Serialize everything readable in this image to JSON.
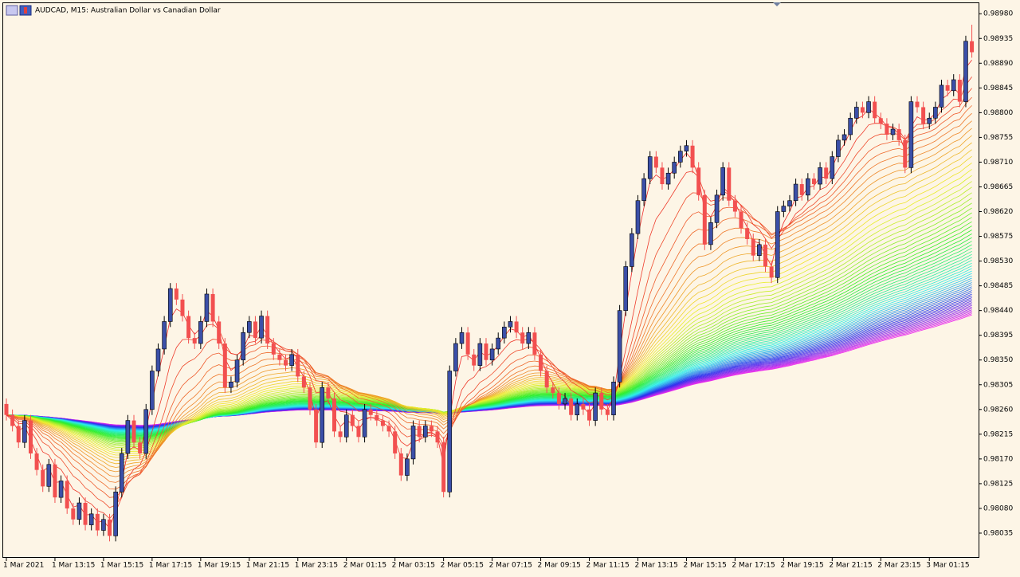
{
  "chart_data": {
    "type": "candlestick",
    "title": "AUDCAD, M15:  Australian Dollar vs Canadian Dollar",
    "up_color": "#3b4fa8",
    "down_color": "#f25050",
    "background": "#fdf5e6",
    "ylim": [
      0.9799,
      0.99005
    ],
    "yticks": [
      {
        "value": 0.9898,
        "label": "0.98980"
      },
      {
        "value": 0.98935,
        "label": "0.98935"
      },
      {
        "value": 0.9889,
        "label": "0.98890"
      },
      {
        "value": 0.98845,
        "label": "0.98845"
      },
      {
        "value": 0.988,
        "label": "0.98800"
      },
      {
        "value": 0.98755,
        "label": "0.98755"
      },
      {
        "value": 0.9871,
        "label": "0.98710"
      },
      {
        "value": 0.98665,
        "label": "0.98665"
      },
      {
        "value": 0.9862,
        "label": "0.98620"
      },
      {
        "value": 0.98575,
        "label": "0.98575"
      },
      {
        "value": 0.9853,
        "label": "0.98530"
      },
      {
        "value": 0.98485,
        "label": "0.98485"
      },
      {
        "value": 0.9844,
        "label": "0.98440"
      },
      {
        "value": 0.98395,
        "label": "0.98395"
      },
      {
        "value": 0.9835,
        "label": "0.98350"
      },
      {
        "value": 0.98305,
        "label": "0.98305"
      },
      {
        "value": 0.9826,
        "label": "0.98260"
      },
      {
        "value": 0.98215,
        "label": "0.98215"
      },
      {
        "value": 0.9817,
        "label": "0.98170"
      },
      {
        "value": 0.98125,
        "label": "0.98125"
      },
      {
        "value": 0.9808,
        "label": "0.98080"
      },
      {
        "value": 0.98035,
        "label": "0.98035"
      }
    ],
    "categories": [
      "1 Mar 2021",
      null,
      null,
      null,
      null,
      null,
      null,
      null,
      "1 Mar 13:15",
      null,
      null,
      null,
      null,
      null,
      null,
      null,
      "1 Mar 15:15",
      null,
      null,
      null,
      null,
      null,
      null,
      null,
      "1 Mar 17:15",
      null,
      null,
      null,
      null,
      null,
      null,
      null,
      "1 Mar 19:15",
      null,
      null,
      null,
      null,
      null,
      null,
      null,
      "1 Mar 21:15",
      null,
      null,
      null,
      null,
      null,
      null,
      null,
      "1 Mar 23:15",
      null,
      null,
      null,
      null,
      null,
      null,
      null,
      "2 Mar 01:15",
      null,
      null,
      null,
      null,
      null,
      null,
      null,
      "2 Mar 03:15",
      null,
      null,
      null,
      null,
      null,
      null,
      null,
      "2 Mar 05:15",
      null,
      null,
      null,
      null,
      null,
      null,
      null,
      "2 Mar 07:15",
      null,
      null,
      null,
      null,
      null,
      null,
      null,
      "2 Mar 09:15",
      null,
      null,
      null,
      null,
      null,
      null,
      null,
      "2 Mar 11:15",
      null,
      null,
      null,
      null,
      null,
      null,
      null,
      "2 Mar 13:15",
      null,
      null,
      null,
      null,
      null,
      null,
      null,
      "2 Mar 15:15",
      null,
      null,
      null,
      null,
      null,
      null,
      null,
      "2 Mar 17:15",
      null,
      null,
      null,
      null,
      null,
      null,
      null,
      "2 Mar 19:15",
      null,
      null,
      null,
      null,
      null,
      null,
      null,
      "2 Mar 21:15",
      null,
      null,
      null,
      null,
      null,
      null,
      null,
      "2 Mar 23:15",
      null,
      null,
      null,
      null,
      null,
      null,
      null,
      "3 Mar 01:15",
      null,
      null,
      null,
      null,
      null,
      null,
      null
    ],
    "open": [
      0.9827,
      0.9825,
      0.9823,
      0.982,
      0.9824,
      0.9818,
      0.9815,
      0.9812,
      0.9816,
      0.981,
      0.9813,
      0.9808,
      0.9806,
      0.9809,
      0.9805,
      0.9807,
      0.9804,
      0.9806,
      0.9803,
      0.9811,
      0.9818,
      0.9824,
      0.982,
      0.9818,
      0.9826,
      0.9833,
      0.9837,
      0.9842,
      0.9848,
      0.9846,
      0.9843,
      0.9839,
      0.9838,
      0.9842,
      0.9847,
      0.9842,
      0.9838,
      0.983,
      0.9831,
      0.9835,
      0.984,
      0.9842,
      0.9839,
      0.9843,
      0.9838,
      0.9836,
      0.9835,
      0.9834,
      0.9836,
      0.9832,
      0.983,
      0.9826,
      0.982,
      0.983,
      0.9828,
      0.9822,
      0.9821,
      0.9825,
      0.9823,
      0.9821,
      0.9826,
      0.9825,
      0.9824,
      0.9823,
      0.9822,
      0.9818,
      0.9814,
      0.9817,
      0.9823,
      0.9821,
      0.9823,
      0.9822,
      0.982,
      0.9811,
      0.9833,
      0.9838,
      0.984,
      0.9836,
      0.9834,
      0.9838,
      0.9835,
      0.9837,
      0.9839,
      0.9841,
      0.9842,
      0.984,
      0.9838,
      0.984,
      0.9836,
      0.9833,
      0.983,
      0.9829,
      0.9827,
      0.9828,
      0.9825,
      0.9827,
      0.9826,
      0.9824,
      0.9829,
      0.9826,
      0.9825,
      0.9831,
      0.9844,
      0.9852,
      0.9858,
      0.9864,
      0.9868,
      0.9872,
      0.987,
      0.9867,
      0.9869,
      0.9871,
      0.9873,
      0.9874,
      0.987,
      0.9865,
      0.9856,
      0.986,
      0.9865,
      0.987,
      0.9864,
      0.9862,
      0.9859,
      0.9857,
      0.9854,
      0.9856,
      0.9852,
      0.985,
      0.9862,
      0.9863,
      0.9864,
      0.9867,
      0.9865,
      0.9868,
      0.9867,
      0.987,
      0.9868,
      0.9872,
      0.9875,
      0.9876,
      0.9879,
      0.9881,
      0.988,
      0.9882,
      0.9879,
      0.9878,
      0.9876,
      0.9877,
      0.9875,
      0.987,
      0.9882,
      0.9881,
      0.9878,
      0.9879,
      0.9881,
      0.9885,
      0.9884,
      0.9886,
      0.9882,
      0.9893
    ],
    "high": [
      0.9828,
      0.9826,
      0.9824,
      0.9825,
      0.9825,
      0.9819,
      0.9816,
      0.9817,
      0.9817,
      0.9814,
      0.9814,
      0.9809,
      0.981,
      0.981,
      0.9808,
      0.9808,
      0.9807,
      0.9807,
      0.9812,
      0.9819,
      0.9825,
      0.9825,
      0.9821,
      0.9827,
      0.9834,
      0.9838,
      0.9843,
      0.9849,
      0.9849,
      0.9847,
      0.9844,
      0.984,
      0.9843,
      0.9848,
      0.9848,
      0.9843,
      0.9839,
      0.9832,
      0.9836,
      0.9841,
      0.9843,
      0.9843,
      0.9844,
      0.9844,
      0.9839,
      0.9837,
      0.9836,
      0.9837,
      0.9837,
      0.9833,
      0.9831,
      0.9827,
      0.9831,
      0.9831,
      0.9829,
      0.9823,
      0.9826,
      0.9826,
      0.9824,
      0.9827,
      0.9827,
      0.9826,
      0.9825,
      0.9824,
      0.9823,
      0.9819,
      0.9818,
      0.9824,
      0.9824,
      0.9824,
      0.9824,
      0.9823,
      0.9821,
      0.9834,
      0.9839,
      0.9841,
      0.9841,
      0.9837,
      0.9839,
      0.9839,
      0.9838,
      0.984,
      0.9842,
      0.9843,
      0.9843,
      0.9841,
      0.9841,
      0.9841,
      0.9837,
      0.9834,
      0.9831,
      0.983,
      0.9829,
      0.9829,
      0.9828,
      0.9828,
      0.9827,
      0.983,
      0.983,
      0.9827,
      0.9832,
      0.9845,
      0.9853,
      0.9859,
      0.9865,
      0.9869,
      0.9873,
      0.9873,
      0.9871,
      0.987,
      0.9872,
      0.9874,
      0.9875,
      0.9875,
      0.9871,
      0.9866,
      0.9861,
      0.9866,
      0.9871,
      0.9871,
      0.9865,
      0.9863,
      0.986,
      0.9858,
      0.9857,
      0.9857,
      0.9853,
      0.9863,
      0.9864,
      0.9865,
      0.9868,
      0.9868,
      0.9869,
      0.9869,
      0.9871,
      0.9871,
      0.9873,
      0.9876,
      0.9877,
      0.988,
      0.9882,
      0.9882,
      0.9883,
      0.9883,
      0.988,
      0.9879,
      0.9878,
      0.9878,
      0.9876,
      0.9883,
      0.9883,
      0.9882,
      0.988,
      0.9882,
      0.9886,
      0.9886,
      0.9887,
      0.9887,
      0.9894,
      0.9896
    ],
    "low": [
      0.9824,
      0.9822,
      0.9819,
      0.9819,
      0.9817,
      0.9814,
      0.9811,
      0.9811,
      0.9809,
      0.9809,
      0.9807,
      0.9805,
      0.9805,
      0.9804,
      0.9804,
      0.9803,
      0.9803,
      0.9802,
      0.9802,
      0.981,
      0.9817,
      0.9819,
      0.9817,
      0.9817,
      0.9825,
      0.9832,
      0.9836,
      0.9841,
      0.9845,
      0.9842,
      0.9838,
      0.9837,
      0.9837,
      0.9841,
      0.9841,
      0.9837,
      0.9829,
      0.9829,
      0.983,
      0.9834,
      0.9839,
      0.9838,
      0.9838,
      0.9837,
      0.9835,
      0.9834,
      0.9833,
      0.9833,
      0.9831,
      0.9829,
      0.9825,
      0.9819,
      0.9819,
      0.9827,
      0.9821,
      0.982,
      0.982,
      0.9822,
      0.982,
      0.982,
      0.9824,
      0.9823,
      0.9822,
      0.9821,
      0.9817,
      0.9813,
      0.9813,
      0.9816,
      0.982,
      0.982,
      0.9821,
      0.9819,
      0.981,
      0.981,
      0.9832,
      0.9837,
      0.9835,
      0.9833,
      0.9833,
      0.9834,
      0.9834,
      0.9836,
      0.9838,
      0.984,
      0.9839,
      0.9837,
      0.9837,
      0.9835,
      0.9832,
      0.9829,
      0.9828,
      0.9826,
      0.9826,
      0.9824,
      0.9824,
      0.9825,
      0.9823,
      0.9823,
      0.9825,
      0.9824,
      0.9824,
      0.983,
      0.9843,
      0.9851,
      0.9857,
      0.9863,
      0.9867,
      0.9869,
      0.9866,
      0.9866,
      0.9868,
      0.987,
      0.9872,
      0.9869,
      0.9864,
      0.9855,
      0.9855,
      0.9859,
      0.9864,
      0.9863,
      0.9861,
      0.9858,
      0.9856,
      0.9853,
      0.9853,
      0.9851,
      0.9849,
      0.9849,
      0.9861,
      0.9862,
      0.9863,
      0.9864,
      0.9864,
      0.9866,
      0.9866,
      0.9867,
      0.9867,
      0.9871,
      0.9874,
      0.9875,
      0.9878,
      0.9879,
      0.9879,
      0.9878,
      0.9877,
      0.9875,
      0.9875,
      0.9874,
      0.9869,
      0.9869,
      0.988,
      0.9877,
      0.9877,
      0.9878,
      0.988,
      0.9883,
      0.9883,
      0.9881,
      0.9881,
      0.989
    ],
    "close": [
      0.9825,
      0.9823,
      0.982,
      0.9824,
      0.9818,
      0.9815,
      0.9812,
      0.9816,
      0.981,
      0.9813,
      0.9808,
      0.9806,
      0.9809,
      0.9805,
      0.9807,
      0.9804,
      0.9806,
      0.9803,
      0.9811,
      0.9818,
      0.9824,
      0.982,
      0.9818,
      0.9826,
      0.9833,
      0.9837,
      0.9842,
      0.9848,
      0.9846,
      0.9843,
      0.9839,
      0.9838,
      0.9842,
      0.9847,
      0.9842,
      0.9838,
      0.983,
      0.9831,
      0.9835,
      0.984,
      0.9842,
      0.9839,
      0.9843,
      0.9838,
      0.9836,
      0.9835,
      0.9834,
      0.9836,
      0.9832,
      0.983,
      0.9826,
      0.982,
      0.983,
      0.9828,
      0.9822,
      0.9821,
      0.9825,
      0.9823,
      0.9821,
      0.9826,
      0.9825,
      0.9824,
      0.9823,
      0.9822,
      0.9818,
      0.9814,
      0.9817,
      0.9823,
      0.9821,
      0.9823,
      0.9822,
      0.982,
      0.9811,
      0.9833,
      0.9838,
      0.984,
      0.9836,
      0.9834,
      0.9838,
      0.9835,
      0.9837,
      0.9839,
      0.9841,
      0.9842,
      0.984,
      0.9838,
      0.984,
      0.9836,
      0.9833,
      0.983,
      0.9829,
      0.9827,
      0.9828,
      0.9825,
      0.9827,
      0.9826,
      0.9824,
      0.9829,
      0.9826,
      0.9825,
      0.9831,
      0.9844,
      0.9852,
      0.9858,
      0.9864,
      0.9868,
      0.9872,
      0.987,
      0.9867,
      0.9869,
      0.9871,
      0.9873,
      0.9874,
      0.987,
      0.9865,
      0.9856,
      0.986,
      0.9865,
      0.987,
      0.9864,
      0.9862,
      0.9859,
      0.9857,
      0.9854,
      0.9856,
      0.9852,
      0.985,
      0.9862,
      0.9863,
      0.9864,
      0.9867,
      0.9865,
      0.9868,
      0.9867,
      0.987,
      0.9868,
      0.9872,
      0.9875,
      0.9876,
      0.9879,
      0.9881,
      0.988,
      0.9882,
      0.9879,
      0.9878,
      0.9876,
      0.9877,
      0.9875,
      0.987,
      0.9882,
      0.9881,
      0.9878,
      0.9879,
      0.9881,
      0.9885,
      0.9884,
      0.9886,
      0.9882,
      0.9893,
      0.9891
    ]
  }
}
